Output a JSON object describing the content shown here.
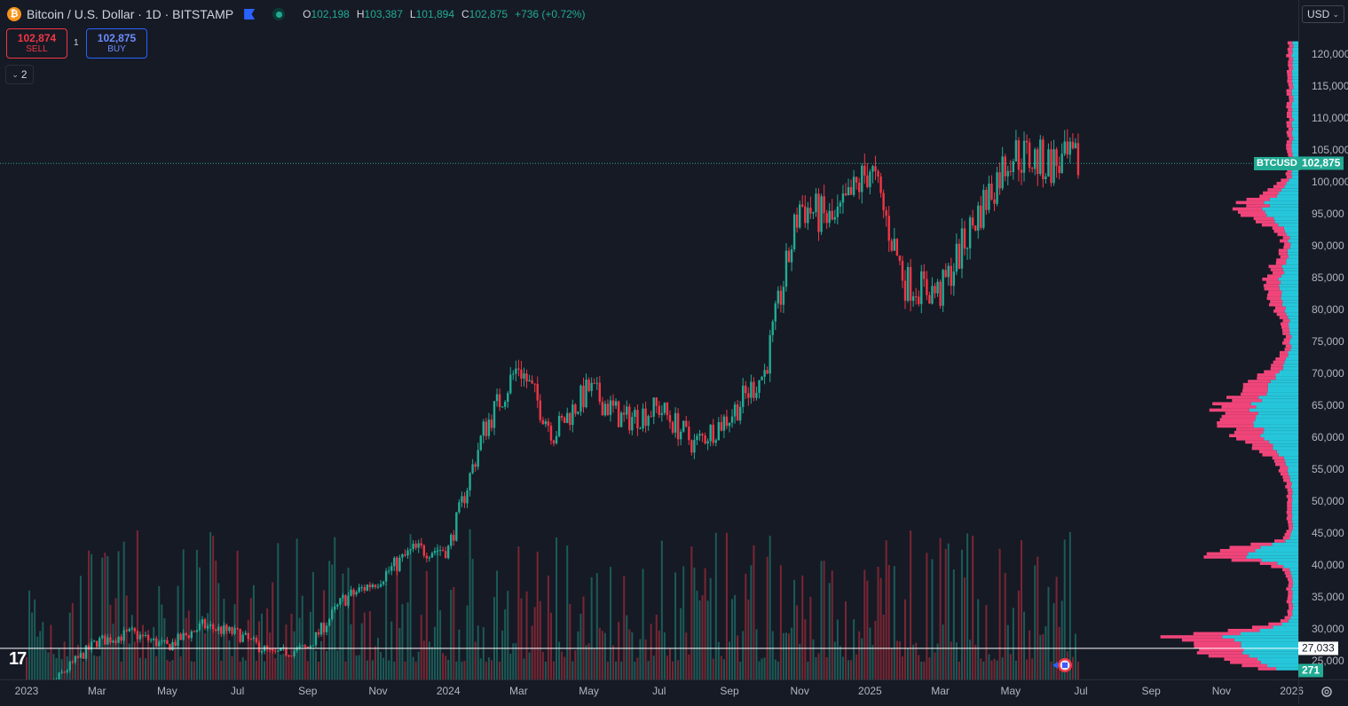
{
  "header": {
    "coin_glyph": "₿",
    "title": "Bitcoin / U.S. Dollar · 1D · BITSTAMP",
    "ohlc": [
      {
        "k": "O",
        "v": "102,198"
      },
      {
        "k": "H",
        "v": "103,387"
      },
      {
        "k": "L",
        "v": "101,894"
      },
      {
        "k": "C",
        "v": "102,875"
      },
      {
        "k": "",
        "v": "+736 (+0.72%)"
      }
    ]
  },
  "trade": {
    "sell_price": "102,874",
    "sell_label": "SELL",
    "buy_price": "102,875",
    "buy_label": "BUY",
    "spread": "1"
  },
  "indicators_collapse": "2",
  "currency": "USD",
  "symbol_tag": "BTCUSD",
  "last_price_label": "102,875",
  "crosshair_price_label": "27,033",
  "volume_label": "271",
  "logo_text": "17",
  "colors": {
    "up": "#22ab94",
    "down": "#f23645",
    "bg": "#161a25",
    "vp_up": "#26c6da",
    "vp_down": "#f0457a"
  },
  "chart_data": {
    "type": "candlestick",
    "interval": "1D",
    "price_axis_ticks": [
      "120,000",
      "115,000",
      "110,000",
      "105,000",
      "100,000",
      "95,000",
      "90,000",
      "85,000",
      "80,000",
      "75,000",
      "70,000",
      "65,000",
      "60,000",
      "55,000",
      "50,000",
      "45,000",
      "40,000",
      "35,000",
      "30,000",
      "25,000"
    ],
    "time_axis_ticks": [
      "2023",
      "Mar",
      "May",
      "Jul",
      "Sep",
      "Nov",
      "2024",
      "Mar",
      "May",
      "Jul",
      "Sep",
      "Nov",
      "2025",
      "Mar",
      "May",
      "Jul",
      "Sep",
      "Nov",
      "2026"
    ],
    "y_range": [
      22500,
      123000
    ],
    "last_close": 102875,
    "crosshair_price": 27033,
    "approx_closes": [
      {
        "x": "2023-01",
        "y": 16600
      },
      {
        "x": "2023-02",
        "y": 23000
      },
      {
        "x": "2023-03",
        "y": 28000
      },
      {
        "x": "2023-04",
        "y": 29300
      },
      {
        "x": "2023-05",
        "y": 27200
      },
      {
        "x": "2023-06",
        "y": 30500
      },
      {
        "x": "2023-07",
        "y": 29200
      },
      {
        "x": "2023-08",
        "y": 26000
      },
      {
        "x": "2023-09",
        "y": 27000
      },
      {
        "x": "2023-10",
        "y": 34500
      },
      {
        "x": "2023-11",
        "y": 37700
      },
      {
        "x": "2023-12",
        "y": 42300
      },
      {
        "x": "2024-01",
        "y": 42500
      },
      {
        "x": "2024-02",
        "y": 61000
      },
      {
        "x": "2024-03",
        "y": 71300
      },
      {
        "x": "2024-04",
        "y": 60600
      },
      {
        "x": "2024-05",
        "y": 67500
      },
      {
        "x": "2024-06",
        "y": 62700
      },
      {
        "x": "2024-07",
        "y": 64600
      },
      {
        "x": "2024-08",
        "y": 58900
      },
      {
        "x": "2024-09",
        "y": 63300
      },
      {
        "x": "2024-10",
        "y": 70200
      },
      {
        "x": "2024-11",
        "y": 96400
      },
      {
        "x": "2024-12",
        "y": 93400
      },
      {
        "x": "2025-01",
        "y": 102400
      },
      {
        "x": "2025-02",
        "y": 84300
      },
      {
        "x": "2025-03",
        "y": 82500
      },
      {
        "x": "2025-04",
        "y": 94200
      },
      {
        "x": "2025-05",
        "y": 104600
      },
      {
        "x": "2025-06",
        "y": 102875
      }
    ]
  }
}
